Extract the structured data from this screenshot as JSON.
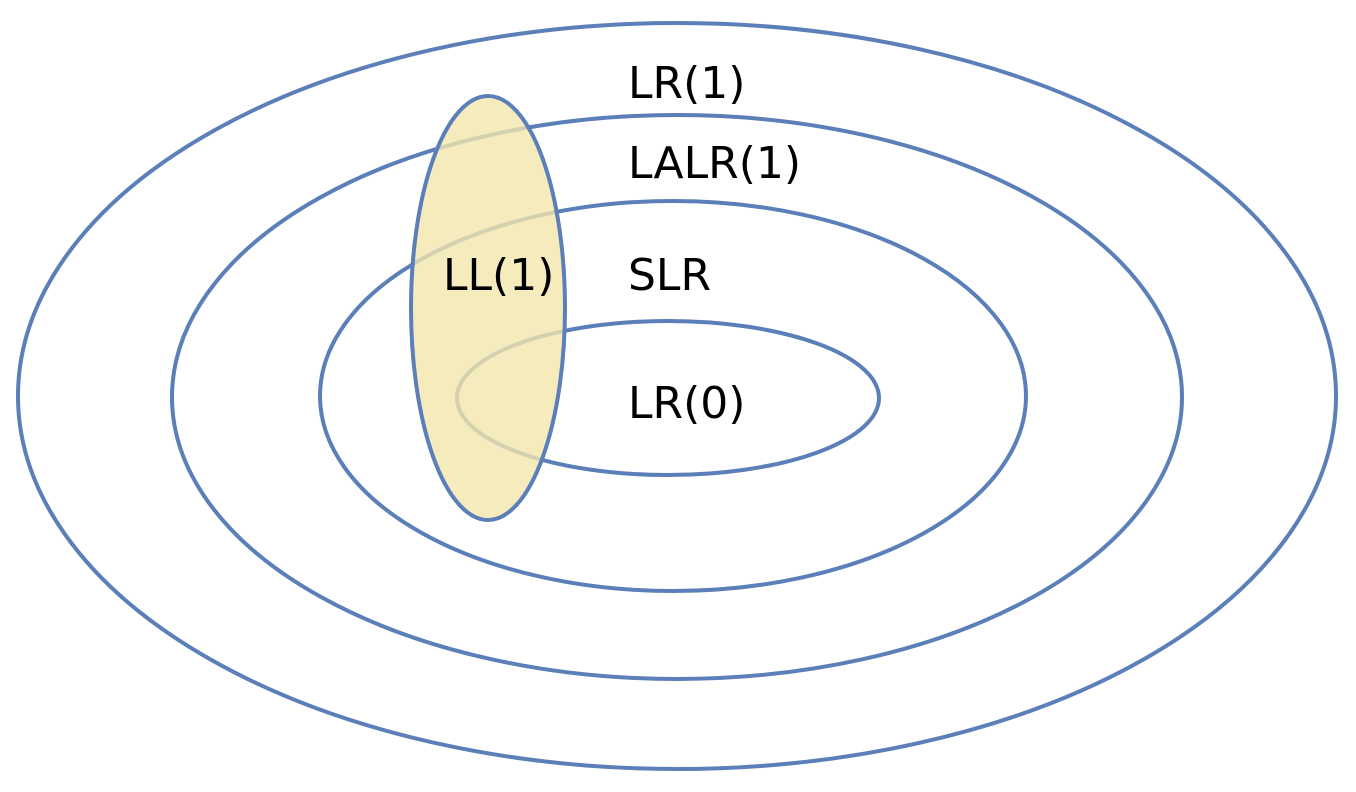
{
  "colors": {
    "outline": "#5b7fb8",
    "ll_fill": "#f2e6ad",
    "text": "#000000"
  },
  "sets": {
    "lr1": {
      "label": "LR(1)"
    },
    "lalr1": {
      "label": "LALR(1)"
    },
    "slr": {
      "label": "SLR"
    },
    "lr0": {
      "label": "LR(0)"
    },
    "ll1": {
      "label": "LL(1)"
    }
  }
}
